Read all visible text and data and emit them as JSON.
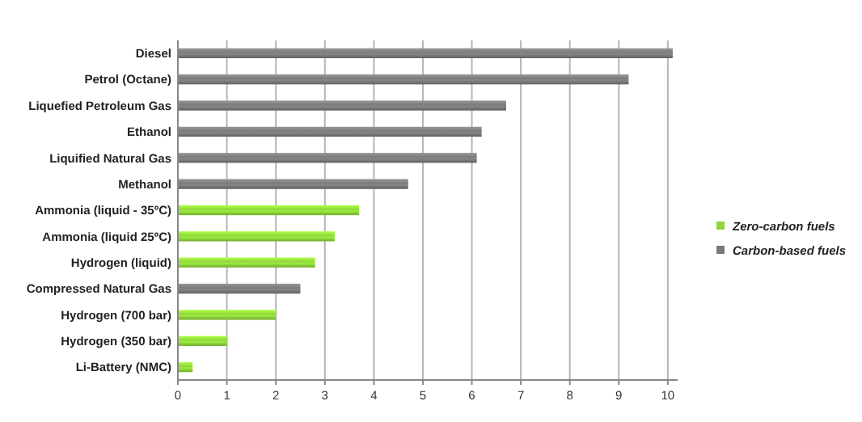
{
  "chart_data": {
    "type": "bar",
    "orientation": "horizontal",
    "stacked": true,
    "categories": [
      "Diesel",
      "Petrol (Octane)",
      "Liquefied Petroleum Gas",
      "Ethanol",
      "Liquified Natural Gas",
      "Methanol",
      "Ammonia (liquid - 35ºC)",
      "Ammonia (liquid 25ºC)",
      "Hydrogen (liquid)",
      "Compressed Natural Gas",
      "Hydrogen (700 bar)",
      "Hydrogen (350 bar)",
      "Li-Battery (NMC)"
    ],
    "series": [
      {
        "name": "Zero-carbon fuels",
        "color": "#8ed63a",
        "values": [
          null,
          null,
          null,
          null,
          null,
          null,
          3.7,
          3.2,
          2.8,
          null,
          2.0,
          1.0,
          0.3
        ]
      },
      {
        "name": "Carbon-based fuels",
        "color": "#7a7a7a",
        "values": [
          10.1,
          9.2,
          6.7,
          6.2,
          6.1,
          4.7,
          null,
          null,
          null,
          2.5,
          null,
          null,
          null
        ]
      }
    ],
    "xlim": [
      0,
      10.2
    ],
    "xticks": [
      0,
      1,
      2,
      3,
      4,
      5,
      6,
      7,
      8,
      9,
      10
    ],
    "grid": "x",
    "legend": "right"
  }
}
